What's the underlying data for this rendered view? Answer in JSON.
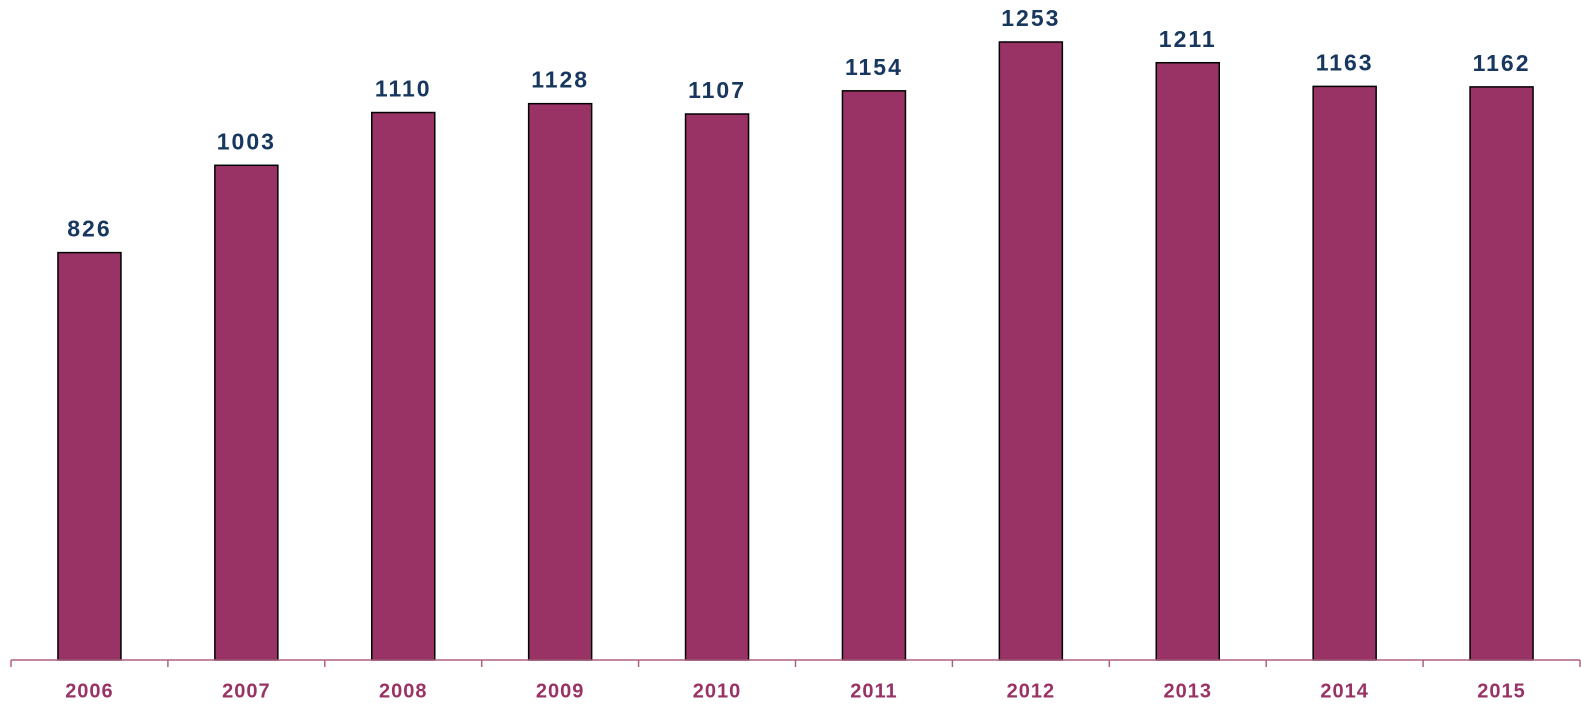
{
  "chart_data": {
    "type": "bar",
    "categories": [
      "2006",
      "2007",
      "2008",
      "2009",
      "2010",
      "2011",
      "2012",
      "2013",
      "2014",
      "2015"
    ],
    "values": [
      826,
      1003,
      1110,
      1128,
      1107,
      1154,
      1253,
      1211,
      1163,
      1162
    ],
    "color": "#993366"
  }
}
